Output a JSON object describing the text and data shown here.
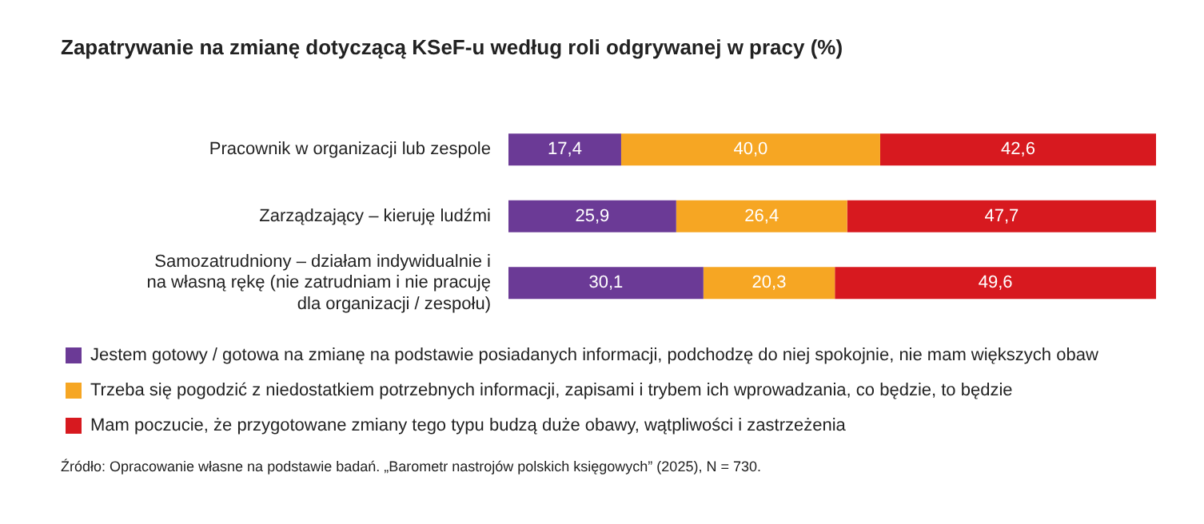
{
  "chart_data": {
    "type": "bar",
    "orientation": "horizontal",
    "stacked": true,
    "title": "Zapatrywanie na zmianę dotyczącą KSeF-u według roli odgrywanej w pracy (%)",
    "categories": [
      "Pracownik w organizacji lub zespole",
      "Zarządzający – kieruję ludźmi",
      "Samozatrudniony – działam indywidualnie i na własną rękę (nie zatrudniam i nie pracuję dla organizacji / zespołu)"
    ],
    "series": [
      {
        "name": "Jestem gotowy / gotowa na zmianę na podstawie posiadanych informacji, podchodzę do niej spokojnie, nie mam większych obaw",
        "color": "#6b3a96",
        "values": [
          17.4,
          25.9,
          30.1
        ],
        "value_labels": [
          "17,4",
          "25,9",
          "30,1"
        ]
      },
      {
        "name": "Trzeba się pogodzić z niedostatkiem potrzebnych informacji, zapisami i trybem ich wprowadzania, co będzie, to będzie",
        "color": "#f6a623",
        "values": [
          40.0,
          26.4,
          20.3
        ],
        "value_labels": [
          "40,0",
          "26,4",
          "20,3"
        ]
      },
      {
        "name": "Mam poczucie, że przygotowane zmiany tego typu budzą duże obawy, wątpliwości i zastrzeżenia",
        "color": "#d7191f",
        "values": [
          42.6,
          47.7,
          49.6
        ],
        "value_labels": [
          "42,6",
          "47,7",
          "49,6"
        ]
      }
    ],
    "legend": "bottom",
    "tick_labels": "y",
    "xlim": [
      0,
      100
    ],
    "annotations": [
      "Źródło: Opracowanie własne na podstawie badań. „Barometr nastrojów polskich księgowych” (2025), N = 730."
    ]
  }
}
